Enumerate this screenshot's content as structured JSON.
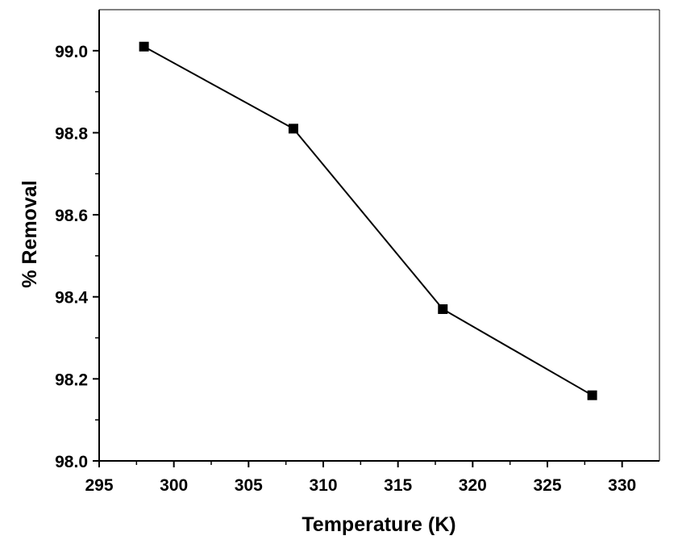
{
  "chart_data": {
    "type": "line",
    "title": "",
    "xlabel": "Temperature (K)",
    "ylabel": "% Removal",
    "xlim": [
      295,
      332.5
    ],
    "ylim": [
      98.0,
      99.1
    ],
    "xticks": [
      295,
      300,
      305,
      310,
      315,
      320,
      325,
      330
    ],
    "yticks": [
      98.0,
      98.2,
      98.4,
      98.6,
      98.8,
      99.0
    ],
    "xtick_labels": [
      "295",
      "300",
      "305",
      "310",
      "315",
      "320",
      "325",
      "330"
    ],
    "ytick_labels": [
      "98.0",
      "98.2",
      "98.4",
      "98.6",
      "98.8",
      "99.0"
    ],
    "grid": false,
    "legend": "none",
    "series": [
      {
        "x": [
          298,
          308,
          318,
          328
        ],
        "values": [
          99.01,
          98.81,
          98.37,
          98.16
        ],
        "marker": "square",
        "color": "#000000"
      }
    ]
  }
}
